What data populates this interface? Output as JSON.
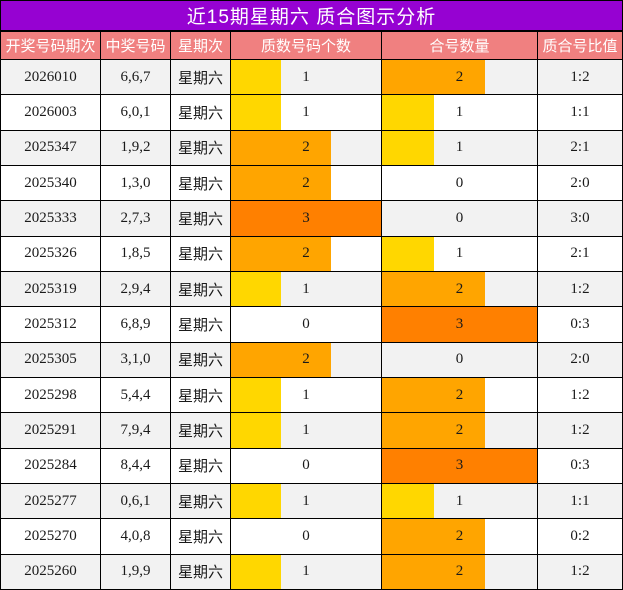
{
  "title": "近15期星期六 质合图示分析",
  "style": {
    "title_bg": "#9602D2",
    "title_text": "#FFFFFF",
    "header_bg": "#F08080",
    "header_text": "#FFFFFF",
    "row_alt_bg": "#F2F2F2",
    "row_bg": "#FFFFFF",
    "border": "#000000",
    "bar_colors": {
      "1": "#FFD700",
      "2": "#FFA500",
      "3": "#FF8000"
    }
  },
  "chart_data": {
    "type": "table",
    "title": "近15期星期六 质合图示分析",
    "columns": [
      "开奖号码期次",
      "中奖号码",
      "星期次",
      "质数号码个数",
      "合号数量",
      "质合号比值"
    ],
    "bar_scale_max": 3,
    "rows": [
      {
        "period": "2026010",
        "winning_numbers": "6,6,7",
        "weekday": "星期六",
        "prime_count": 1,
        "composite_count": 2,
        "ratio": "1:2"
      },
      {
        "period": "2026003",
        "winning_numbers": "6,0,1",
        "weekday": "星期六",
        "prime_count": 1,
        "composite_count": 1,
        "ratio": "1:1"
      },
      {
        "period": "2025347",
        "winning_numbers": "1,9,2",
        "weekday": "星期六",
        "prime_count": 2,
        "composite_count": 1,
        "ratio": "2:1"
      },
      {
        "period": "2025340",
        "winning_numbers": "1,3,0",
        "weekday": "星期六",
        "prime_count": 2,
        "composite_count": 0,
        "ratio": "2:0"
      },
      {
        "period": "2025333",
        "winning_numbers": "2,7,3",
        "weekday": "星期六",
        "prime_count": 3,
        "composite_count": 0,
        "ratio": "3:0"
      },
      {
        "period": "2025326",
        "winning_numbers": "1,8,5",
        "weekday": "星期六",
        "prime_count": 2,
        "composite_count": 1,
        "ratio": "2:1"
      },
      {
        "period": "2025319",
        "winning_numbers": "2,9,4",
        "weekday": "星期六",
        "prime_count": 1,
        "composite_count": 2,
        "ratio": "1:2"
      },
      {
        "period": "2025312",
        "winning_numbers": "6,8,9",
        "weekday": "星期六",
        "prime_count": 0,
        "composite_count": 3,
        "ratio": "0:3"
      },
      {
        "period": "2025305",
        "winning_numbers": "3,1,0",
        "weekday": "星期六",
        "prime_count": 2,
        "composite_count": 0,
        "ratio": "2:0"
      },
      {
        "period": "2025298",
        "winning_numbers": "5,4,4",
        "weekday": "星期六",
        "prime_count": 1,
        "composite_count": 2,
        "ratio": "1:2"
      },
      {
        "period": "2025291",
        "winning_numbers": "7,9,4",
        "weekday": "星期六",
        "prime_count": 1,
        "composite_count": 2,
        "ratio": "1:2"
      },
      {
        "period": "2025284",
        "winning_numbers": "8,4,4",
        "weekday": "星期六",
        "prime_count": 0,
        "composite_count": 3,
        "ratio": "0:3"
      },
      {
        "period": "2025277",
        "winning_numbers": "0,6,1",
        "weekday": "星期六",
        "prime_count": 1,
        "composite_count": 1,
        "ratio": "1:1"
      },
      {
        "period": "2025270",
        "winning_numbers": "4,0,8",
        "weekday": "星期六",
        "prime_count": 0,
        "composite_count": 2,
        "ratio": "0:2"
      },
      {
        "period": "2025260",
        "winning_numbers": "1,9,9",
        "weekday": "星期六",
        "prime_count": 1,
        "composite_count": 2,
        "ratio": "1:2"
      }
    ]
  }
}
